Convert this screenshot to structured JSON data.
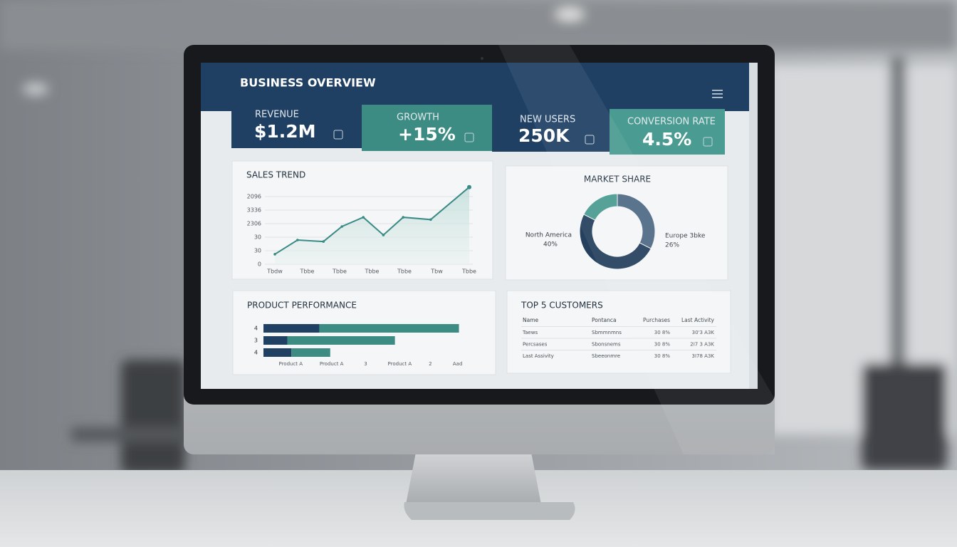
{
  "header": {
    "title": "BUSINESS OVERVIEW"
  },
  "kpis": [
    {
      "label": "REVENUE",
      "value": "$1.2M"
    },
    {
      "label": "GROWTH",
      "value": "+15%"
    },
    {
      "label": "NEW USERS",
      "value": "250K"
    },
    {
      "label": "CONVERSION RATE",
      "value": "4.5%"
    }
  ],
  "chart_data": [
    {
      "type": "line",
      "title": "SALES TREND",
      "x": [
        0,
        0.7,
        1.5,
        2.07,
        2.73,
        3.35,
        3.96,
        4.81,
        6
      ],
      "values": [
        0.74,
        1.79,
        1.68,
        2.79,
        3.47,
        2.16,
        3.47,
        3.3,
        5.7
      ],
      "color": "#3a8a86",
      "xlim": [
        0,
        6
      ],
      "xticks": [
        {
          "value": 0,
          "label": "Tbdw"
        },
        {
          "value": 1,
          "label": "Tbbe"
        },
        {
          "value": 2,
          "label": "Tbbe"
        },
        {
          "value": 3,
          "label": "Tbbe"
        },
        {
          "value": 4,
          "label": "Tbbe"
        },
        {
          "value": 5,
          "label": "Tbw"
        },
        {
          "value": 6,
          "label": "Tbbe"
        }
      ],
      "ylim": [
        0,
        6
      ],
      "yticks": [
        0,
        {
          "value": 1,
          "label": "30"
        },
        {
          "value": 2,
          "label": "30"
        },
        {
          "value": 3,
          "label": "2306"
        },
        {
          "value": 4,
          "label": "3336"
        },
        {
          "value": 5,
          "label": "2096"
        }
      ],
      "grid": true
    },
    {
      "type": "pie",
      "title": "MARKET SHARE",
      "donut": true,
      "categories": [
        "Europe 3bke",
        "North America",
        null
      ],
      "values": [
        26,
        40,
        14
      ],
      "value_labels": [
        "26%",
        "40%",
        null
      ],
      "colors": [
        "#4f6a85",
        "#24405e",
        "#4a9b91"
      ]
    },
    {
      "type": "bar",
      "title": "PRODUCT PERFORMANCE",
      "orientation": "horizontal",
      "stacked": true,
      "categories": [
        "4",
        "3",
        "4"
      ],
      "series": [
        {
          "color": "#1f3f63",
          "values": [
            82,
            35,
            41
          ]
        },
        {
          "color": "#3d8c84",
          "values": [
            205,
            158,
            57
          ]
        }
      ],
      "xlim": [
        0,
        300
      ],
      "xticks": [
        {
          "value": 40,
          "label": "Product A"
        },
        {
          "value": 100,
          "label": "Product A"
        },
        {
          "value": 150,
          "label": "3"
        },
        {
          "value": 200,
          "label": "Product A"
        },
        {
          "value": 245,
          "label": "2"
        },
        {
          "value": 285,
          "label": "Aad"
        }
      ]
    }
  ],
  "table": {
    "title": "TOP 5 CUSTOMERS",
    "columns": [
      "Name",
      "Pontanca",
      "Purchases",
      "Last Activity"
    ],
    "rows": [
      [
        "Taews",
        "Sbmmnmns",
        "30 8%",
        "30'3 A3K"
      ],
      [
        "Percsases",
        "Sbonsnems",
        "30 8%",
        "2I7 3 A3K"
      ],
      [
        "Last Assivity",
        "Sbeeonmre",
        "30 8%",
        "3I78 A3K"
      ]
    ]
  }
}
